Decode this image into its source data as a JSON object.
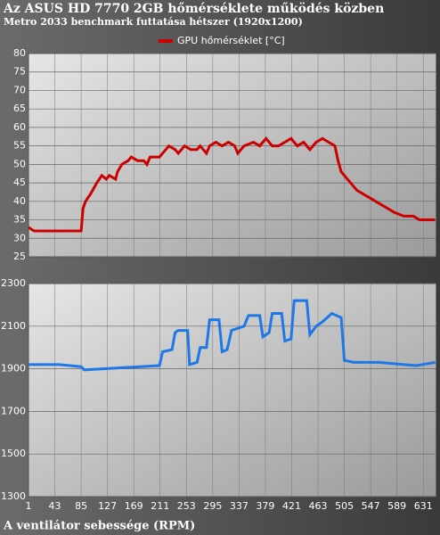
{
  "chart_data": [
    {
      "type": "line",
      "title": "Az ASUS HD 7770 2GB hőmérséklete működés közben",
      "subtitle": "Metro 2033 benchmark futtatása hétszer (1920x1200)",
      "x": [
        1,
        5,
        10,
        85,
        88,
        92,
        100,
        110,
        118,
        125,
        130,
        140,
        143,
        150,
        160,
        165,
        175,
        185,
        190,
        195,
        210,
        215,
        225,
        235,
        240,
        250,
        260,
        270,
        275,
        285,
        290,
        300,
        310,
        320,
        330,
        335,
        345,
        360,
        370,
        380,
        390,
        400,
        410,
        420,
        430,
        440,
        450,
        460,
        470,
        480,
        490,
        495,
        500,
        505,
        515,
        525,
        535,
        545,
        555,
        565,
        575,
        585,
        600,
        615,
        625,
        640,
        650
      ],
      "series": [
        {
          "name": "GPU hőmérséklet [°C]",
          "color": "#cc0000",
          "values": [
            33,
            32.5,
            32,
            32,
            38,
            40,
            42,
            45,
            47,
            46,
            47,
            46,
            48,
            50,
            51,
            52,
            51,
            51,
            50,
            52,
            52,
            53,
            55,
            54,
            53,
            55,
            54,
            54,
            55,
            53,
            55,
            56,
            55,
            56,
            55,
            53,
            55,
            56,
            55,
            57,
            55,
            55,
            56,
            57,
            55,
            56,
            54,
            56,
            57,
            56,
            55,
            51,
            48,
            47,
            45,
            43,
            42,
            41,
            40,
            39,
            38,
            37,
            36,
            36,
            35,
            35,
            35
          ]
        }
      ],
      "xlim": [
        1,
        652
      ],
      "ylim": [
        25,
        80
      ],
      "yticks": [
        25,
        30,
        35,
        40,
        45,
        50,
        55,
        60,
        65,
        70,
        75,
        80
      ],
      "grid": true,
      "legend": "top"
    },
    {
      "type": "line",
      "title": "A ventilátor sebessége (RPM)",
      "x": [
        1,
        50,
        85,
        90,
        120,
        150,
        180,
        210,
        215,
        230,
        235,
        240,
        255,
        258,
        270,
        275,
        285,
        290,
        305,
        310,
        318,
        325,
        335,
        345,
        352,
        370,
        375,
        385,
        390,
        405,
        410,
        420,
        425,
        445,
        450,
        460,
        470,
        485,
        500,
        505,
        520,
        560,
        600,
        620,
        650
      ],
      "series": [
        {
          "name": "A ventilátor sebessége",
          "color": "#1e78e6",
          "values": [
            1920,
            1920,
            1910,
            1895,
            1900,
            1905,
            1910,
            1915,
            1980,
            1990,
            2070,
            2080,
            2080,
            1920,
            1930,
            2000,
            2000,
            2130,
            2130,
            1980,
            1990,
            2080,
            2090,
            2100,
            2150,
            2150,
            2050,
            2070,
            2160,
            2160,
            2030,
            2040,
            2220,
            2220,
            2060,
            2100,
            2120,
            2160,
            2140,
            1940,
            1930,
            1930,
            1920,
            1915,
            1930
          ]
        }
      ],
      "xlim": [
        1,
        652
      ],
      "xticks": [
        1,
        43,
        85,
        127,
        169,
        211,
        253,
        295,
        337,
        379,
        421,
        463,
        505,
        547,
        589,
        631
      ],
      "ylim": [
        1300,
        2300
      ],
      "yticks": [
        1300,
        1500,
        1700,
        1900,
        2100,
        2300
      ],
      "grid": true
    }
  ]
}
